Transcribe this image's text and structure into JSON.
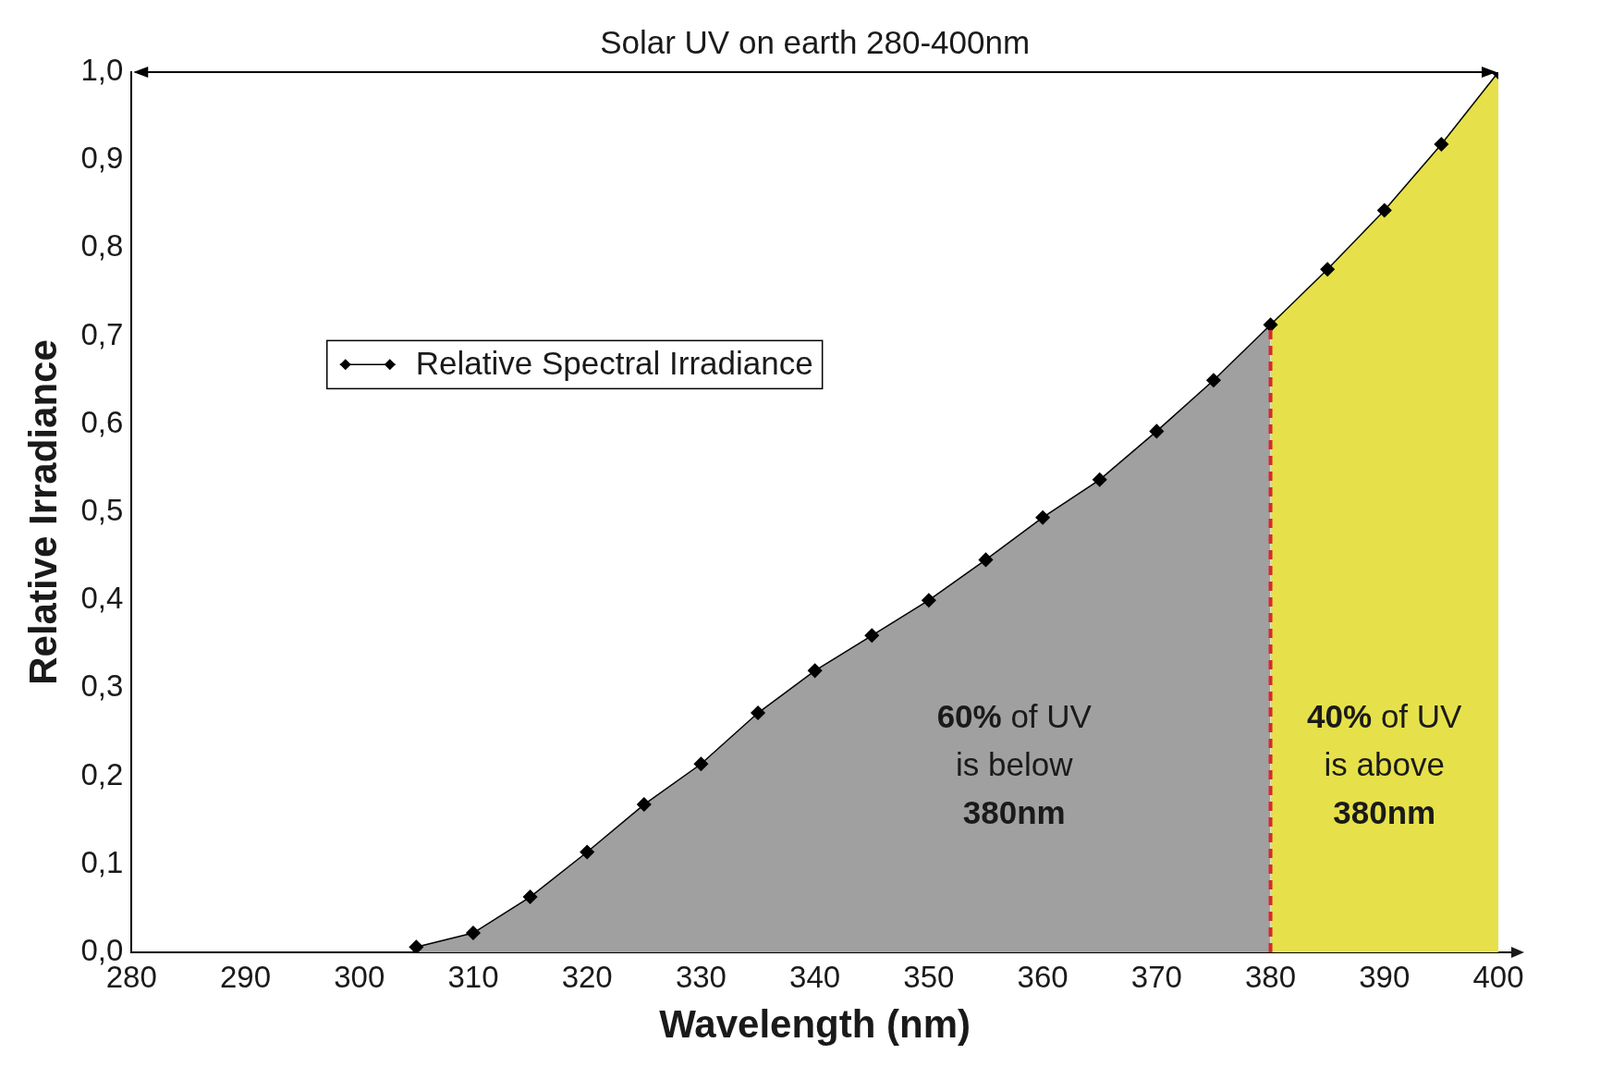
{
  "chart_data": {
    "type": "line",
    "title": "Solar UV on earth 280-400nm",
    "x_label": "Wavelength (nm)",
    "y_label": "Relative Irradiance",
    "x": [
      305,
      310,
      315,
      320,
      325,
      330,
      335,
      340,
      345,
      350,
      355,
      360,
      365,
      370,
      375,
      380,
      385,
      390,
      395,
      400
    ],
    "series": [
      {
        "name": "Relative Spectral Irradiance",
        "color": "#000000",
        "marker": "diamond",
        "values": [
          0.006,
          0.022,
          0.063,
          0.114,
          0.168,
          0.214,
          0.272,
          0.32,
          0.36,
          0.4,
          0.446,
          0.494,
          0.537,
          0.592,
          0.65,
          0.713,
          0.776,
          0.843,
          0.918,
          1.0
        ]
      }
    ],
    "xlim": [
      280,
      400
    ],
    "xticks": [
      280,
      290,
      300,
      310,
      320,
      330,
      340,
      350,
      360,
      370,
      380,
      390,
      400
    ],
    "ylim": [
      0,
      1
    ],
    "yticks": [
      {
        "value": 0,
        "label": "0,0"
      },
      {
        "value": 0.1,
        "label": "0,1"
      },
      {
        "value": 0.2,
        "label": "0,2"
      },
      {
        "value": 0.3,
        "label": "0,3"
      },
      {
        "value": 0.4,
        "label": "0,4"
      },
      {
        "value": 0.5,
        "label": "0,5"
      },
      {
        "value": 0.6,
        "label": "0,6"
      },
      {
        "value": 0.7,
        "label": "0,7"
      },
      {
        "value": 0.8,
        "label": "0,8"
      },
      {
        "value": 0.9,
        "label": "0,9"
      },
      {
        "value": 1,
        "label": "1,0"
      }
    ],
    "grid": false,
    "legend": "upper left",
    "regions": [
      {
        "from": 305,
        "to": 380,
        "color": "#a0a0a0",
        "text": [
          "60% of UV",
          "is below",
          "380nm"
        ]
      },
      {
        "from": 380,
        "to": 400,
        "color": "#e6e14a",
        "text": [
          "40% of UV",
          "is above",
          "380nm"
        ]
      }
    ],
    "divider": {
      "x": 380,
      "color": "#d42a2a",
      "line_style": "dashed"
    }
  }
}
